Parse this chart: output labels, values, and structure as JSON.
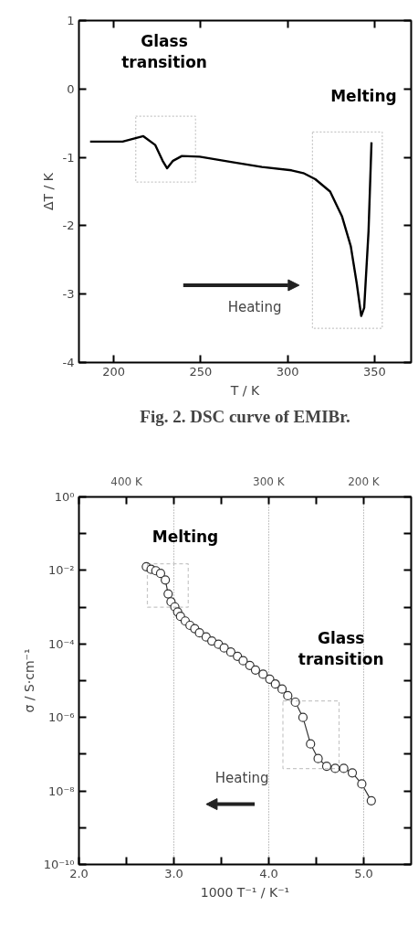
{
  "chart_data": [
    {
      "type": "line",
      "title": "Fig. 2. DSC curve of EMIBr.",
      "xlabel": "T / K",
      "ylabel": "ΔT / K",
      "xlim": [
        180,
        371
      ],
      "ylim": [
        -4,
        1
      ],
      "xticks": [
        200,
        250,
        300,
        350
      ],
      "yticks": [
        -4,
        -3,
        -2,
        -1,
        0,
        1
      ],
      "series": [
        {
          "color": "#000000",
          "x": [
            186.4,
            205.1,
            217,
            223.9,
            228.1,
            230.7,
            234.1,
            239.2,
            249.4,
            268.2,
            285.2,
            302.2,
            309,
            315.9,
            324.4,
            331.2,
            336.3,
            339.7,
            342.3,
            344,
            346.5,
            348.2
          ],
          "values": [
            -0.77,
            -0.77,
            -0.69,
            -0.82,
            -1.05,
            -1.16,
            -1.05,
            -0.98,
            -0.99,
            -1.07,
            -1.14,
            -1.19,
            -1.23,
            -1.32,
            -1.5,
            -1.86,
            -2.3,
            -2.84,
            -3.32,
            -3.2,
            -2.08,
            -0.78
          ]
        }
      ],
      "annotations": [
        "Glass\ntransition",
        "Melting",
        "Heating"
      ]
    },
    {
      "type": "line",
      "xlabel": "1000 T⁻¹ / K⁻¹",
      "ylabel": "σ / S·cm⁻¹",
      "log": "y",
      "grid": "x",
      "marker": "circle",
      "xlim": [
        2.0,
        5.5
      ],
      "ylim": [
        1e-10,
        1
      ],
      "xticks": [
        {
          "value": 2,
          "label": "2.0"
        },
        {
          "value": 2.5,
          "label": null
        },
        {
          "value": 3,
          "label": "3.0"
        },
        {
          "value": 3.5,
          "label": null
        },
        {
          "value": 4,
          "label": "4.0"
        },
        {
          "value": 4.5,
          "label": null
        },
        {
          "value": 5,
          "label": "5.0"
        }
      ],
      "yticks": [
        {
          "value": 1e-10,
          "label": "10⁻¹⁰"
        },
        {
          "value": 1e-09,
          "label": null
        },
        {
          "value": 1e-08,
          "label": "10⁻⁸"
        },
        {
          "value": 1e-07,
          "label": null
        },
        {
          "value": 1e-06,
          "label": "10⁻⁶"
        },
        {
          "value": 1e-05,
          "label": null
        },
        {
          "value": 0.0001,
          "label": "10⁻⁴"
        },
        {
          "value": 0.001,
          "label": null
        },
        {
          "value": 0.01,
          "label": "10⁻²"
        },
        {
          "value": 0.1,
          "label": null
        },
        {
          "value": 1,
          "label": "10⁰"
        }
      ],
      "series": [
        {
          "color": "#333333",
          "x": [
            2.71,
            2.76,
            2.81,
            2.86,
            2.91,
            2.94,
            2.97,
            3.01,
            3.04,
            3.07,
            3.12,
            3.17,
            3.22,
            3.27,
            3.34,
            3.4,
            3.47,
            3.53,
            3.6,
            3.67,
            3.73,
            3.8,
            3.86,
            3.94,
            4.01,
            4.07,
            4.14,
            4.2,
            4.28,
            4.36,
            4.44,
            4.52,
            4.61,
            4.7,
            4.79,
            4.88,
            4.98,
            5.08
          ],
          "values": [
            0.0126,
            0.0107,
            0.0098,
            0.0083,
            0.0055,
            0.0023,
            0.0014,
            0.00102,
            0.00074,
            0.00056,
            0.00042,
            0.00032,
            0.00026,
            0.0002,
            0.000155,
            0.00012,
            9.8e-05,
            7.8e-05,
            6e-05,
            4.6e-05,
            3.5e-05,
            2.6e-05,
            1.95e-05,
            1.5e-05,
            1.1e-05,
            8.1e-06,
            5.9e-06,
            3.9e-06,
            2.6e-06,
            1e-06,
            1.9e-07,
            7.6e-08,
            4.7e-08,
            4.1e-08,
            4.1e-08,
            3.1e-08,
            1.55e-08,
            5.4e-09
          ]
        }
      ],
      "annotations": [
        "Melting",
        "Glass\ntransition",
        "Heating",
        "400 K",
        "300 K",
        "200 K"
      ]
    }
  ]
}
